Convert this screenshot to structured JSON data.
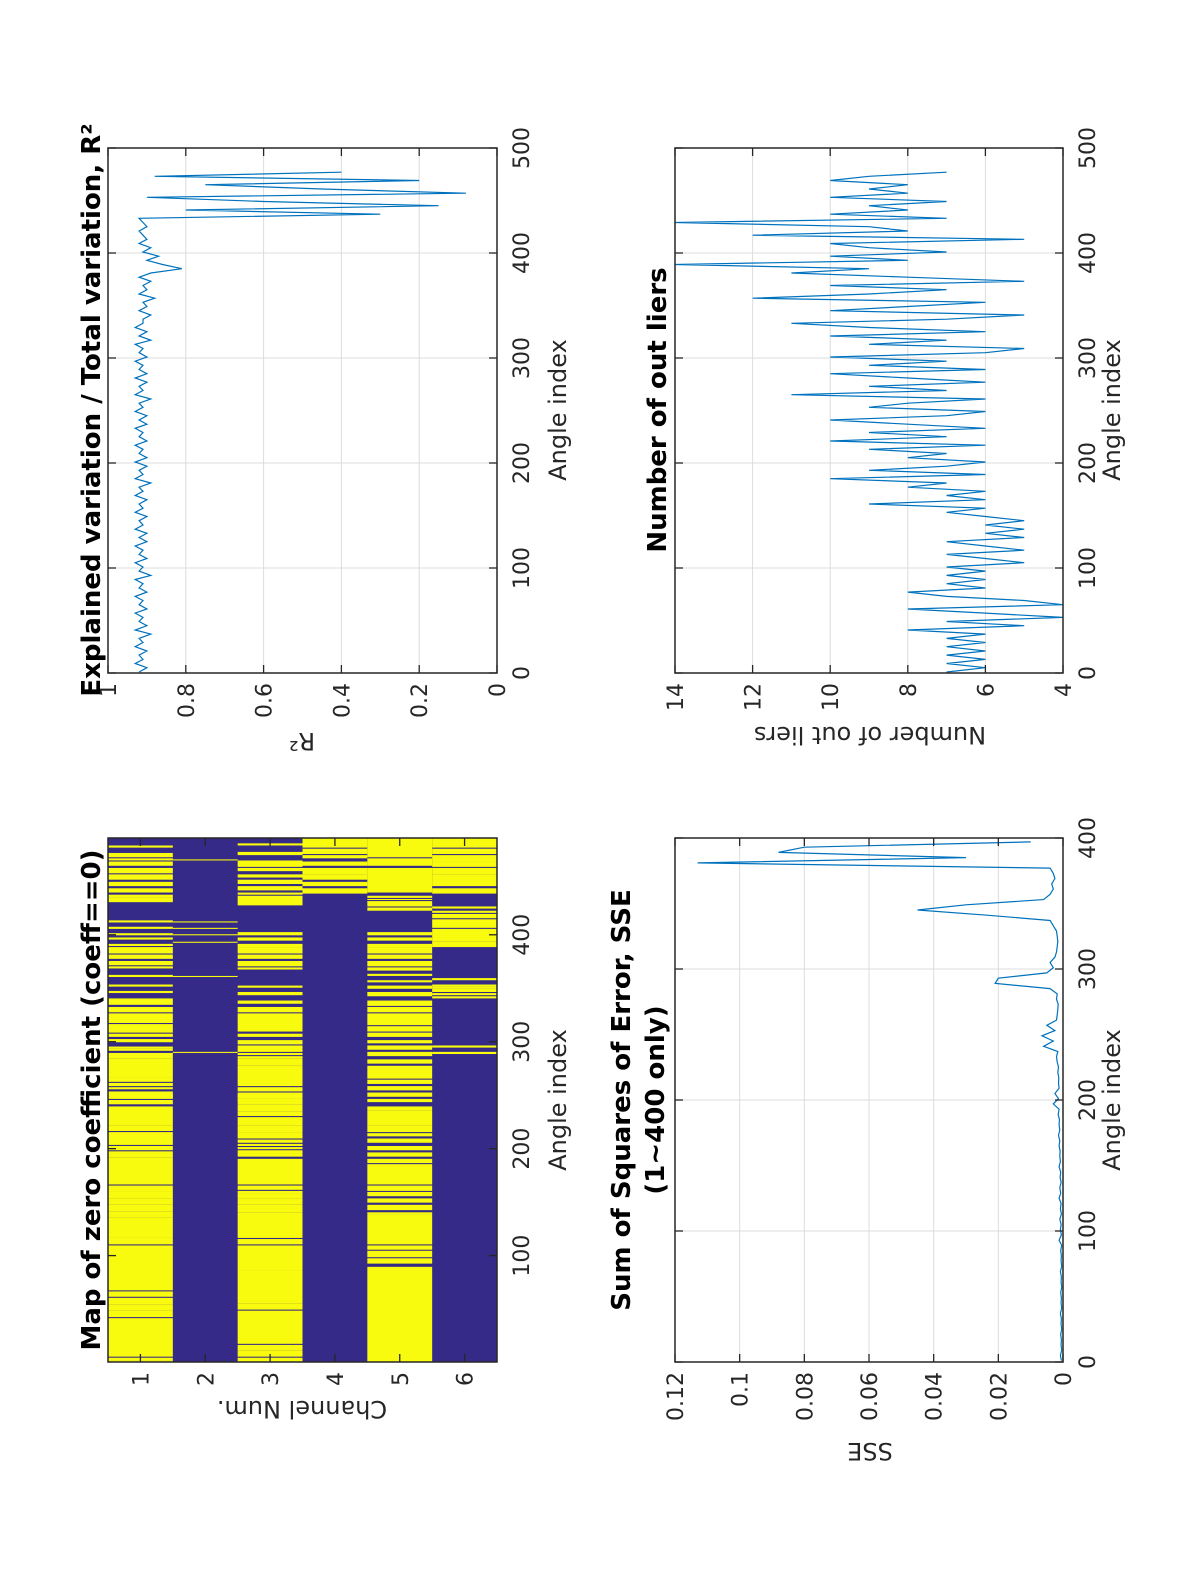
{
  "colors": {
    "zero": "#F9FB0E",
    "nonzero": "#352A87",
    "line": "#0072BD",
    "grid": "#DCDCDC",
    "axis": "#262626"
  },
  "chart_data": [
    {
      "id": "map",
      "type": "heatmap",
      "title": "Map of zero coefficient (coeff==0)",
      "xlabel": "Angle index",
      "ylabel": "Channel Num.",
      "xlim": [
        0.5,
        490.5
      ],
      "xticks": [
        100,
        200,
        300,
        400
      ],
      "yticks": [
        1,
        2,
        3,
        4,
        5,
        6
      ],
      "grid": false,
      "legend": "none",
      "zero_intervals": [
        [
          [
            482,
            483
          ],
          [
            473,
            476
          ],
          [
            470,
            471
          ],
          [
            465,
            468
          ],
          [
            458,
            462
          ],
          [
            452,
            456
          ],
          [
            446,
            449
          ],
          [
            440,
            443
          ],
          [
            435,
            437
          ],
          [
            433,
            434
          ],
          [
            431,
            432
          ],
          [
            412,
            413
          ],
          [
            406,
            407
          ],
          [
            400,
            401
          ],
          [
            396,
            397
          ],
          [
            390,
            391
          ],
          [
            383,
            388
          ],
          [
            378,
            381
          ],
          [
            372,
            375
          ],
          [
            369,
            370
          ],
          [
            361,
            362
          ],
          [
            352,
            353
          ],
          [
            346,
            347
          ],
          [
            335,
            340
          ],
          [
            328,
            332
          ],
          [
            318,
            326
          ],
          [
            311,
            316
          ],
          [
            309,
            310
          ],
          [
            305,
            307
          ],
          [
            300,
            302
          ],
          [
            294,
            295
          ],
          [
            292,
            293
          ],
          [
            285,
            289
          ],
          [
            267,
            284
          ],
          [
            263,
            266
          ],
          [
            259,
            261
          ],
          [
            256,
            257
          ],
          [
            248,
            253
          ],
          [
            247,
            250
          ],
          [
            242,
            245
          ],
          [
            222,
            239
          ],
          [
            217,
            221
          ],
          [
            210,
            215
          ],
          [
            204,
            209
          ],
          [
            199,
            202
          ],
          [
            192,
            197
          ],
          [
            167,
            191
          ],
          [
            160,
            165
          ],
          [
            154,
            159
          ],
          [
            148,
            153
          ],
          [
            142,
            147
          ],
          [
            136,
            141
          ],
          [
            117,
            135
          ],
          [
            111,
            116
          ],
          [
            68,
            109
          ],
          [
            62,
            66
          ],
          [
            55,
            60
          ],
          [
            49,
            54
          ],
          [
            43,
            48
          ],
          [
            6,
            41
          ],
          [
            2,
            4
          ],
          [
            1,
            1
          ]
        ],
        [
          [
            470,
            470
          ],
          [
            412,
            412
          ],
          [
            406,
            406
          ],
          [
            400,
            400
          ],
          [
            393,
            393
          ],
          [
            361,
            361
          ],
          [
            290,
            290
          ]
        ],
        [
          [
            484,
            485
          ],
          [
            475,
            477
          ],
          [
            464,
            469
          ],
          [
            460,
            462
          ],
          [
            454,
            456
          ],
          [
            448,
            451
          ],
          [
            442,
            445
          ],
          [
            438,
            439
          ],
          [
            428,
            436
          ],
          [
            400,
            402
          ],
          [
            395,
            397
          ],
          [
            389,
            391
          ],
          [
            383,
            388
          ],
          [
            378,
            381
          ],
          [
            371,
            375
          ],
          [
            368,
            369
          ],
          [
            351,
            352
          ],
          [
            344,
            346
          ],
          [
            336,
            338
          ],
          [
            328,
            332
          ],
          [
            310,
            326
          ],
          [
            305,
            307
          ],
          [
            298,
            301
          ],
          [
            291,
            296
          ],
          [
            288,
            289
          ],
          [
            285,
            286
          ],
          [
            278,
            284
          ],
          [
            259,
            277
          ],
          [
            254,
            257
          ],
          [
            248,
            252
          ],
          [
            245,
            246
          ],
          [
            247,
            250
          ],
          [
            242,
            246
          ],
          [
            235,
            241
          ],
          [
            231,
            234
          ],
          [
            222,
            229
          ],
          [
            216,
            221
          ],
          [
            210,
            215
          ],
          [
            206,
            208
          ],
          [
            203,
            204
          ],
          [
            200,
            201
          ],
          [
            196,
            198
          ],
          [
            193,
            195
          ],
          [
            167,
            190
          ],
          [
            162,
            165
          ],
          [
            159,
            160
          ],
          [
            154,
            158
          ],
          [
            148,
            153
          ],
          [
            141,
            147
          ],
          [
            117,
            140
          ],
          [
            111,
            115
          ],
          [
            87,
            109
          ],
          [
            56,
            86
          ],
          [
            50,
            55
          ],
          [
            44,
            48
          ],
          [
            18,
            43
          ],
          [
            12,
            16
          ],
          [
            6,
            11
          ],
          [
            1,
            4
          ]
        ],
        [
          [
            482,
            490
          ],
          [
            476,
            480
          ],
          [
            472,
            474
          ],
          [
            465,
            468
          ],
          [
            457,
            462
          ],
          [
            452,
            456
          ],
          [
            446,
            449
          ],
          [
            439,
            443
          ]
        ],
        [
          [
            473,
            490
          ],
          [
            465,
            471
          ],
          [
            440,
            462
          ],
          [
            435,
            436
          ],
          [
            433,
            433
          ],
          [
            427,
            431
          ],
          [
            423,
            425
          ],
          [
            400,
            402
          ],
          [
            395,
            397
          ],
          [
            389,
            391
          ],
          [
            383,
            388
          ],
          [
            378,
            381
          ],
          [
            371,
            375
          ],
          [
            367,
            369
          ],
          [
            362,
            363
          ],
          [
            356,
            357
          ],
          [
            350,
            352
          ],
          [
            343,
            346
          ],
          [
            334,
            338
          ],
          [
            328,
            332
          ],
          [
            316,
            326
          ],
          [
            310,
            314
          ],
          [
            305,
            308
          ],
          [
            299,
            301
          ],
          [
            293,
            296
          ],
          [
            287,
            290
          ],
          [
            280,
            283
          ],
          [
            266,
            277
          ],
          [
            261,
            264
          ],
          [
            255,
            258
          ],
          [
            249,
            252
          ],
          [
            244,
            246
          ],
          [
            236,
            239
          ],
          [
            222,
            235
          ],
          [
            216,
            221
          ],
          [
            212,
            214
          ],
          [
            206,
            209
          ],
          [
            199,
            202
          ],
          [
            193,
            196
          ],
          [
            187,
            190
          ],
          [
            167,
            185
          ],
          [
            161,
            165
          ],
          [
            156,
            159
          ],
          [
            150,
            153
          ],
          [
            143,
            147
          ],
          [
            139,
            140
          ],
          [
            111,
            138
          ],
          [
            106,
            109
          ],
          [
            99,
            104
          ],
          [
            93,
            97
          ],
          [
            1,
            89
          ]
        ],
        [
          [
            482,
            490
          ],
          [
            476,
            480
          ],
          [
            469,
            474
          ],
          [
            464,
            468
          ],
          [
            457,
            462
          ],
          [
            446,
            456
          ],
          [
            439,
            443
          ],
          [
            425,
            426
          ],
          [
            421,
            422
          ],
          [
            416,
            419
          ],
          [
            407,
            414
          ],
          [
            394,
            405
          ],
          [
            389,
            393
          ],
          [
            358,
            359
          ],
          [
            352,
            353
          ],
          [
            350,
            351
          ],
          [
            347,
            349
          ],
          [
            344,
            345
          ],
          [
            341,
            342
          ],
          [
            295,
            296
          ],
          [
            289,
            290
          ]
        ]
      ]
    },
    {
      "id": "r2",
      "type": "line",
      "title": "Explained variation / Total variation, R²",
      "xlabel": "Angle index",
      "ylabel": "R²",
      "xlim": [
        0,
        500
      ],
      "ylim": [
        0,
        1
      ],
      "xticks": [
        0,
        100,
        200,
        300,
        400,
        500
      ],
      "yticks": [
        0,
        0.2,
        0.4,
        0.6,
        0.8,
        1
      ],
      "ytick_labels": [
        "0",
        "0.2",
        "0.4",
        "0.6",
        "0.8",
        "1"
      ],
      "grid": true,
      "legend": "none",
      "x_start": 1,
      "x_step": 4,
      "values": [
        0.92,
        0.9,
        0.93,
        0.91,
        0.92,
        0.9,
        0.93,
        0.91,
        0.92,
        0.89,
        0.93,
        0.9,
        0.92,
        0.91,
        0.93,
        0.9,
        0.92,
        0.91,
        0.93,
        0.9,
        0.92,
        0.91,
        0.93,
        0.89,
        0.92,
        0.91,
        0.93,
        0.9,
        0.92,
        0.91,
        0.93,
        0.9,
        0.92,
        0.9,
        0.93,
        0.91,
        0.92,
        0.9,
        0.93,
        0.91,
        0.92,
        0.9,
        0.93,
        0.91,
        0.92,
        0.89,
        0.93,
        0.91,
        0.92,
        0.9,
        0.93,
        0.9,
        0.92,
        0.91,
        0.93,
        0.9,
        0.92,
        0.91,
        0.93,
        0.9,
        0.92,
        0.9,
        0.93,
        0.91,
        0.92,
        0.89,
        0.93,
        0.91,
        0.92,
        0.9,
        0.93,
        0.9,
        0.92,
        0.91,
        0.93,
        0.9,
        0.92,
        0.91,
        0.93,
        0.89,
        0.92,
        0.9,
        0.93,
        0.91,
        0.91,
        0.89,
        0.92,
        0.9,
        0.91,
        0.88,
        0.92,
        0.9,
        0.91,
        0.89,
        0.92,
        0.89,
        0.81,
        0.86,
        0.9,
        0.87,
        0.91,
        0.89,
        0.92,
        0.9,
        0.91,
        0.92,
        0.9,
        0.91,
        0.92,
        0.3,
        0.8,
        0.15,
        0.6,
        0.9,
        0.08,
        0.45,
        0.75,
        0.2,
        0.88,
        0.4
      ]
    },
    {
      "id": "sse",
      "type": "line",
      "title": [
        "Sum of Squares of Error, SSE",
        "(1~400 only)"
      ],
      "xlabel": "Angle index",
      "ylabel": "SSE",
      "xlim": [
        0,
        400
      ],
      "ylim": [
        0,
        0.12
      ],
      "xticks": [
        0,
        100,
        200,
        300,
        400
      ],
      "yticks": [
        0,
        0.02,
        0.04,
        0.06,
        0.08,
        0.1,
        0.12
      ],
      "ytick_labels": [
        "0",
        "0.02",
        "0.04",
        "0.06",
        "0.08",
        "0.1",
        "0.12"
      ],
      "grid": true,
      "legend": "none",
      "x_start": 1,
      "x_step": 4,
      "values": [
        0.0005,
        0.0008,
        0.0004,
        0.0006,
        0.0005,
        0.0007,
        0.0004,
        0.0006,
        0.0005,
        0.0008,
        0.0004,
        0.0006,
        0.0005,
        0.0007,
        0.0004,
        0.0006,
        0.0005,
        0.0008,
        0.0004,
        0.0006,
        0.0005,
        0.0007,
        0.0004,
        0.0012,
        0.0005,
        0.0008,
        0.0006,
        0.001,
        0.0005,
        0.0008,
        0.0006,
        0.0012,
        0.0007,
        0.001,
        0.0006,
        0.0009,
        0.0007,
        0.0012,
        0.0008,
        0.001,
        0.0009,
        0.0012,
        0.001,
        0.0014,
        0.001,
        0.0012,
        0.0011,
        0.0015,
        0.0012,
        0.003,
        0.0014,
        0.0025,
        0.0012,
        0.0014,
        0.0013,
        0.0016,
        0.0014,
        0.0018,
        0.002,
        0.0016,
        0.006,
        0.003,
        0.0065,
        0.0025,
        0.005,
        0.002,
        0.0018,
        0.0016,
        0.0015,
        0.002,
        0.0018,
        0.004,
        0.021,
        0.02,
        0.005,
        0.003,
        0.004,
        0.0025,
        0.002,
        0.0018,
        0.0016,
        0.0018,
        0.002,
        0.003,
        0.004,
        0.023,
        0.045,
        0.03,
        0.006,
        0.004,
        0.003,
        0.0035,
        0.0025,
        0.003,
        0.004,
        0.113,
        0.03,
        0.088,
        0.08,
        0.01
      ]
    },
    {
      "id": "outliers",
      "type": "line",
      "title": "Number of out liers",
      "xlabel": "Angle index",
      "ylabel": "Number of out liers",
      "xlim": [
        0,
        500
      ],
      "ylim": [
        4,
        14
      ],
      "xticks": [
        0,
        100,
        200,
        300,
        400,
        500
      ],
      "yticks": [
        4,
        6,
        8,
        10,
        12,
        14
      ],
      "ytick_labels": [
        "4",
        "6",
        "8",
        "10",
        "12",
        "14"
      ],
      "grid": true,
      "legend": "none",
      "x_start": 1,
      "x_step": 4,
      "values": [
        7,
        6,
        7,
        6,
        7,
        6,
        7,
        6,
        7,
        6,
        8,
        5,
        7,
        4,
        6,
        8,
        4,
        5,
        7,
        8,
        6,
        7,
        6,
        7,
        6,
        7,
        5,
        6,
        7,
        5,
        6,
        7,
        5,
        6,
        5,
        6,
        5,
        6,
        7,
        6,
        9,
        6,
        7,
        6,
        8,
        7,
        10,
        6,
        9,
        7,
        6,
        8,
        7,
        9,
        6,
        10,
        7,
        9,
        6,
        8,
        10,
        7,
        6,
        9,
        8,
        6,
        11,
        7,
        9,
        6,
        8,
        10,
        6,
        9,
        7,
        10,
        6,
        5,
        9,
        7,
        10,
        6,
        9,
        11,
        7,
        5,
        10,
        8,
        6,
        12,
        9,
        7,
        10,
        5,
        8,
        11,
        9,
        14,
        8,
        10,
        7,
        9,
        10,
        5,
        12,
        8,
        9,
        14,
        7,
        10,
        8,
        9,
        7,
        10,
        8,
        9,
        8,
        10,
        9,
        7
      ]
    }
  ]
}
